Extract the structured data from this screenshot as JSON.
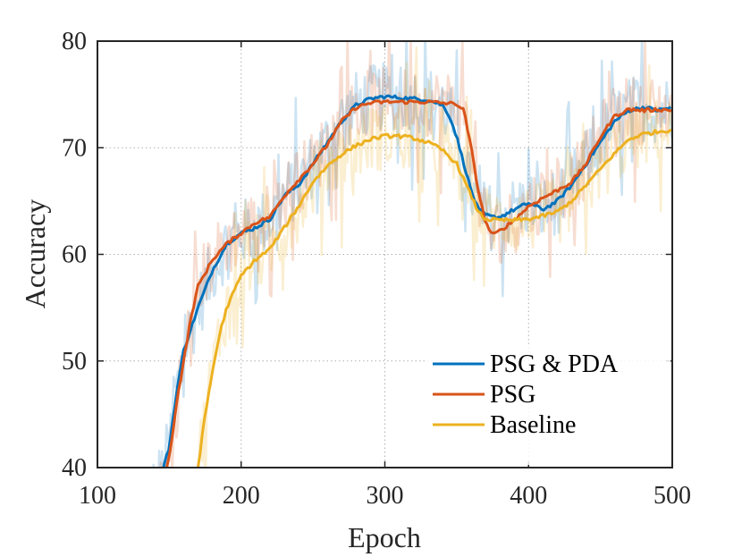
{
  "chart_data": {
    "type": "line",
    "title": "",
    "xlabel": "Epoch",
    "ylabel": "Accuracy",
    "xlim": [
      100,
      500
    ],
    "ylim": [
      40,
      80
    ],
    "xticks": [
      100,
      200,
      300,
      400,
      500
    ],
    "yticks": [
      40,
      50,
      60,
      70,
      80
    ],
    "grid": true,
    "legend_position": "bottom-right",
    "series": [
      {
        "name": "PSG & PDA",
        "color": "#0072BD",
        "x": [
          130,
          140,
          145,
          150,
          155,
          160,
          165,
          170,
          180,
          190,
          200,
          210,
          220,
          230,
          240,
          250,
          260,
          270,
          280,
          290,
          300,
          310,
          320,
          330,
          340,
          345,
          350,
          355,
          360,
          365,
          370,
          375,
          380,
          390,
          400,
          410,
          420,
          430,
          440,
          450,
          460,
          470,
          480,
          490,
          500
        ],
        "y": [
          37,
          38,
          39.5,
          42,
          47,
          51,
          53,
          55,
          58.5,
          61,
          62,
          62.5,
          63.3,
          65.5,
          66.5,
          68.5,
          70.5,
          72.5,
          74,
          74.6,
          74.8,
          74.7,
          74.6,
          74.5,
          74,
          73,
          71,
          68.5,
          66,
          64.2,
          63.7,
          63.5,
          63.5,
          64.2,
          64.8,
          64.2,
          65,
          66.5,
          68.5,
          70.5,
          72.5,
          73.5,
          73.8,
          73.5,
          73.8
        ],
        "noise_amplitude": 4
      },
      {
        "name": "PSG",
        "color": "#D95319",
        "x": [
          140,
          145,
          150,
          155,
          160,
          165,
          170,
          180,
          190,
          200,
          210,
          220,
          230,
          240,
          250,
          260,
          270,
          280,
          290,
          300,
          310,
          320,
          330,
          340,
          350,
          355,
          360,
          365,
          370,
          375,
          380,
          390,
          400,
          410,
          420,
          430,
          440,
          450,
          460,
          470,
          480,
          490,
          500
        ],
        "y": [
          36,
          38,
          41,
          46,
          50,
          54,
          57,
          59.5,
          61,
          62,
          63,
          63.5,
          65.5,
          67,
          68.5,
          70.3,
          72.5,
          73.8,
          74.2,
          74.3,
          74.3,
          74.3,
          74.3,
          74.2,
          74.1,
          73.5,
          70,
          66,
          63,
          61.8,
          62.2,
          63.2,
          64.5,
          65.3,
          66,
          66.8,
          68.5,
          71,
          73,
          73.6,
          73.5,
          73.6,
          73.5
        ],
        "noise_amplitude": 4
      },
      {
        "name": "Baseline",
        "color": "#EDB120",
        "x": [
          170,
          175,
          180,
          185,
          190,
          200,
          210,
          220,
          230,
          240,
          250,
          260,
          270,
          280,
          290,
          300,
          310,
          320,
          330,
          340,
          350,
          355,
          360,
          365,
          370,
          380,
          390,
          400,
          410,
          420,
          430,
          440,
          450,
          460,
          470,
          480,
          490,
          500
        ],
        "y": [
          40,
          45,
          49,
          52.5,
          55,
          58,
          59.5,
          60.5,
          62.5,
          64.5,
          66.8,
          68.3,
          69.4,
          70.2,
          70.8,
          71.1,
          71.1,
          70.9,
          70.5,
          69.8,
          68.5,
          67,
          65.5,
          64,
          63.3,
          63.2,
          63.2,
          63.3,
          63.6,
          64,
          65,
          66.5,
          68,
          69.5,
          70.8,
          71.3,
          71.5,
          71.7
        ],
        "noise_amplitude": 4
      }
    ]
  }
}
